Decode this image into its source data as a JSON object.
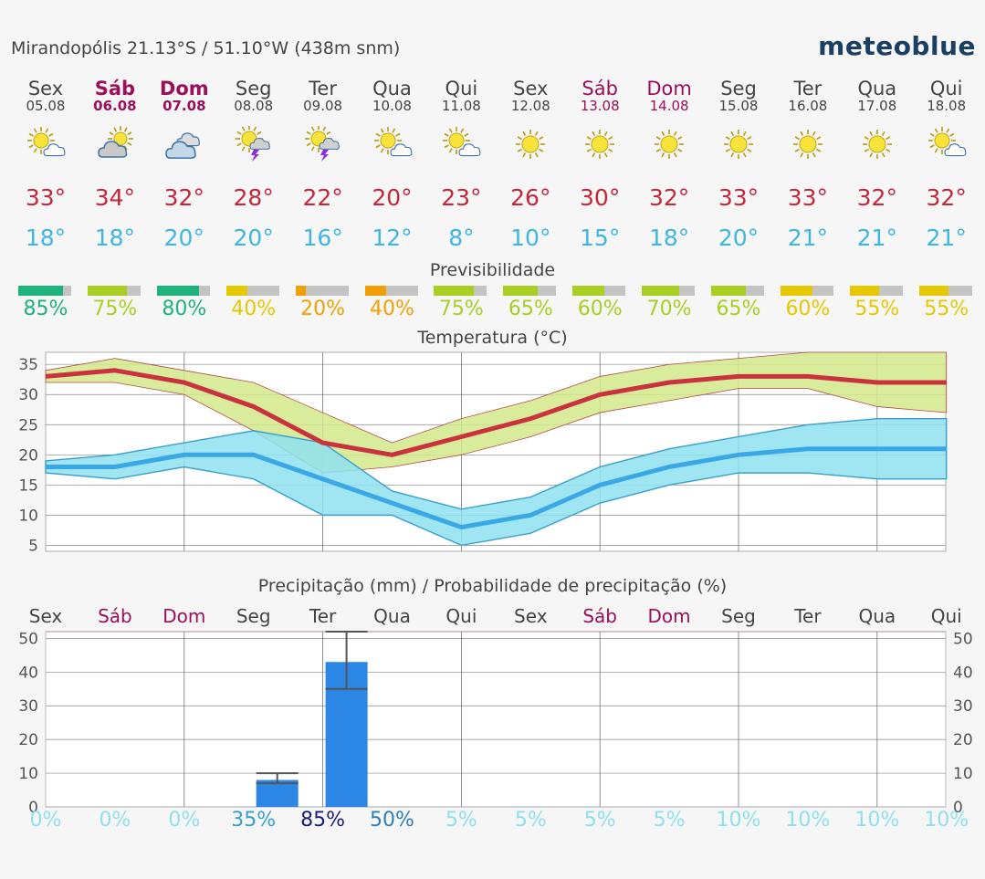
{
  "header": {
    "location": "Mirandopólis  21.13°S / 51.10°W (438m snm)",
    "brand": "meteoblue"
  },
  "days": [
    {
      "name": "Sex",
      "date": "05.08",
      "type": "wk",
      "icon": "sun-cloud",
      "tmax": "33°",
      "tmin": "18°",
      "pred": "85%",
      "pred_value": 85,
      "pred_color": "#1db37a",
      "precip_prob": "0%"
    },
    {
      "name": "Sáb",
      "date": "06.08",
      "type": "wed",
      "icon": "cloud-sun",
      "tmax": "34°",
      "tmin": "18°",
      "pred": "75%",
      "pred_value": 75,
      "pred_color": "#a8cf22",
      "precip_prob": "0%"
    },
    {
      "name": "Dom",
      "date": "07.08",
      "type": "wed",
      "icon": "cloud",
      "tmax": "32°",
      "tmin": "20°",
      "pred": "80%",
      "pred_value": 80,
      "pred_color": "#1db37a",
      "precip_prob": "0%"
    },
    {
      "name": "Seg",
      "date": "08.08",
      "type": "wk",
      "icon": "sun-storm",
      "tmax": "28°",
      "tmin": "20°",
      "pred": "40%",
      "pred_value": 40,
      "pred_color": "#e6c800",
      "precip_prob": "35%"
    },
    {
      "name": "Ter",
      "date": "09.08",
      "type": "wk",
      "icon": "sun-storm",
      "tmax": "22°",
      "tmin": "16°",
      "pred": "20%",
      "pred_value": 20,
      "pred_color": "#f0a000",
      "precip_prob": "85%"
    },
    {
      "name": "Qua",
      "date": "10.08",
      "type": "wk",
      "icon": "sun-cloud",
      "tmax": "20°",
      "tmin": "12°",
      "pred": "40%",
      "pred_value": 40,
      "pred_color": "#f0a000",
      "precip_prob": "50%"
    },
    {
      "name": "Qui",
      "date": "11.08",
      "type": "wk",
      "icon": "sun-cloud",
      "tmax": "23°",
      "tmin": "8°",
      "pred": "75%",
      "pred_value": 75,
      "pred_color": "#a8cf22",
      "precip_prob": "5%"
    },
    {
      "name": "Sex",
      "date": "12.08",
      "type": "wk",
      "icon": "sun",
      "tmax": "26°",
      "tmin": "10°",
      "pred": "65%",
      "pred_value": 65,
      "pred_color": "#a8cf22",
      "precip_prob": "5%"
    },
    {
      "name": "Sáb",
      "date": "13.08",
      "type": "we",
      "icon": "sun",
      "tmax": "30°",
      "tmin": "15°",
      "pred": "60%",
      "pred_value": 60,
      "pred_color": "#a8cf22",
      "precip_prob": "5%"
    },
    {
      "name": "Dom",
      "date": "14.08",
      "type": "we",
      "icon": "sun",
      "tmax": "32°",
      "tmin": "18°",
      "pred": "70%",
      "pred_value": 70,
      "pred_color": "#a8cf22",
      "precip_prob": "5%"
    },
    {
      "name": "Seg",
      "date": "15.08",
      "type": "wk",
      "icon": "sun",
      "tmax": "33°",
      "tmin": "20°",
      "pred": "65%",
      "pred_value": 65,
      "pred_color": "#a8cf22",
      "precip_prob": "10%"
    },
    {
      "name": "Ter",
      "date": "16.08",
      "type": "wk",
      "icon": "sun",
      "tmax": "33°",
      "tmin": "21°",
      "pred": "60%",
      "pred_value": 60,
      "pred_color": "#e6c800",
      "precip_prob": "10%"
    },
    {
      "name": "Qua",
      "date": "17.08",
      "type": "wk",
      "icon": "sun",
      "tmax": "32°",
      "tmin": "21°",
      "pred": "55%",
      "pred_value": 55,
      "pred_color": "#e6c800",
      "precip_prob": "10%"
    },
    {
      "name": "Qui",
      "date": "18.08",
      "type": "wk",
      "icon": "sun-cloud",
      "tmax": "32°",
      "tmin": "21°",
      "pred": "55%",
      "pred_value": 55,
      "pred_color": "#e6c800",
      "precip_prob": "10%"
    }
  ],
  "predictability_title": "Previsibilidade",
  "temp_title": "Temperatura (°C)",
  "precip_title": "Precipitação (mm) / Probabilidade de precipitação (%)",
  "colors": {
    "max_line": "#c9323e",
    "max_band": "#d2e98a",
    "min_line": "#3aa8e6",
    "min_band": "#8fe0f0",
    "bar": "#2b86e6",
    "weekend": "#9b0f5b"
  },
  "chart_data": [
    {
      "type": "line",
      "title": "Temperatura (°C)",
      "categories": [
        "05.08",
        "06.08",
        "07.08",
        "08.08",
        "09.08",
        "10.08",
        "11.08",
        "12.08",
        "13.08",
        "14.08",
        "15.08",
        "16.08",
        "17.08",
        "18.08"
      ],
      "ylim": [
        4,
        37
      ],
      "yticks": [
        5,
        10,
        15,
        20,
        25,
        30,
        35
      ],
      "grid": true,
      "series": [
        {
          "values": [
            33,
            34,
            32,
            28,
            22,
            20,
            23,
            26,
            30,
            32,
            33,
            33,
            32,
            32
          ],
          "band_low": [
            32,
            32,
            30,
            24,
            17,
            18,
            20,
            23,
            27,
            29,
            31,
            31,
            28,
            27
          ],
          "band_high": [
            34,
            36,
            34,
            32,
            27,
            22,
            26,
            29,
            33,
            35,
            36,
            37,
            37,
            37
          ]
        },
        {
          "values": [
            18,
            18,
            20,
            20,
            16,
            12,
            8,
            10,
            15,
            18,
            20,
            21,
            21,
            21
          ],
          "band_low": [
            17,
            16,
            18,
            16,
            10,
            10,
            5,
            7,
            12,
            15,
            17,
            17,
            16,
            16
          ],
          "band_high": [
            19,
            20,
            22,
            24,
            22,
            14,
            11,
            13,
            18,
            21,
            23,
            25,
            26,
            26
          ]
        }
      ]
    },
    {
      "type": "bar",
      "title": "Precipitação (mm) / Probabilidade de precipitação (%)",
      "categories": [
        "Sex",
        "Sáb",
        "Dom",
        "Seg",
        "Ter",
        "Qua",
        "Qui",
        "Sex",
        "Sáb",
        "Dom",
        "Seg",
        "Ter",
        "Qua",
        "Qui"
      ],
      "values": [
        0,
        0,
        0,
        8,
        43,
        0,
        0,
        0,
        0,
        0,
        0,
        0,
        0,
        0
      ],
      "err_low": [
        0,
        0,
        0,
        7,
        35,
        0,
        0,
        0,
        0,
        0,
        0,
        0,
        0,
        0
      ],
      "err_high": [
        0,
        0,
        0,
        10,
        52,
        0,
        0,
        0,
        0,
        0,
        0,
        0,
        0,
        0
      ],
      "probabilities": [
        0,
        0,
        0,
        35,
        85,
        50,
        5,
        5,
        5,
        5,
        10,
        10,
        10,
        10
      ],
      "ylim": [
        0,
        52
      ],
      "yticks": [
        0,
        10,
        20,
        30,
        40,
        50
      ],
      "grid": true
    }
  ]
}
